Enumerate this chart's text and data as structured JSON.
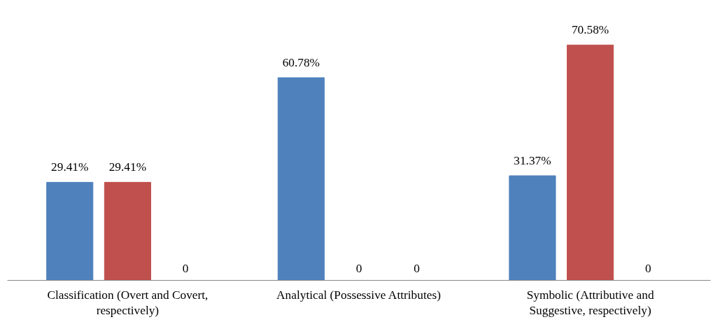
{
  "chart_data": {
    "type": "bar",
    "categories": [
      "Classification (Overt and Covert,\nrespectively)",
      "Analytical (Possessive Attributes)",
      "Symbolic (Attributive and\nSuggestive, respectively)"
    ],
    "series": [
      {
        "color": "#4f81bd",
        "values": [
          29.41,
          60.78,
          31.37
        ],
        "value_labels": [
          "29.41%",
          "60.78%",
          "31.37%"
        ]
      },
      {
        "color": "#c0504d",
        "values": [
          29.41,
          0,
          70.58
        ],
        "value_labels": [
          "29.41%",
          "0",
          "70.58%"
        ]
      },
      {
        "color": "#9bbb59",
        "values": [
          0,
          0,
          0
        ],
        "value_labels": [
          "0",
          "0",
          "0"
        ]
      }
    ],
    "grid": false,
    "tick_labels": "x"
  }
}
